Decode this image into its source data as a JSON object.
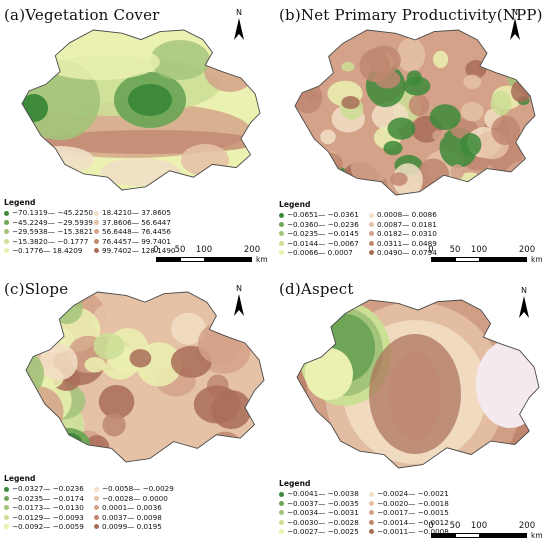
{
  "north_letter": "N",
  "legend_title": "Legend",
  "scale_bar": {
    "ticks": [
      "0",
      "50",
      "100",
      "200"
    ],
    "unit": "km"
  },
  "panels": [
    {
      "title": "(a)Vegetation Cover",
      "legend": [
        {
          "label": "−70.1319— −45.2250",
          "color": "#3d8a3a"
        },
        {
          "label": "−45.2249— −29.5939",
          "color": "#6ea556"
        },
        {
          "label": "−29.5938— −15.3821",
          "color": "#a3c37a"
        },
        {
          "label": "−15.3820— −0.1777",
          "color": "#cbdf95"
        },
        {
          "label": "−0.1776— 18.4209",
          "color": "#ebf1b0"
        },
        {
          "label": "18.4210— 37.8605",
          "color": "#f2dfc6"
        },
        {
          "label": "37.8606— 56.6447",
          "color": "#e5c2a6"
        },
        {
          "label": "56.6448— 76.4456",
          "color": "#d3a288"
        },
        {
          "label": "76.4457— 99.7401",
          "color": "#c08770"
        },
        {
          "label": "99.7402— 128.1490",
          "color": "#a96d58"
        }
      ]
    },
    {
      "title": "(b)Net Primary Productivity(NPP)",
      "legend": [
        {
          "label": "−0.0651— −0.0361",
          "color": "#3d8a3a"
        },
        {
          "label": "−0.0360— −0.0236",
          "color": "#6ea556"
        },
        {
          "label": "−0.0235— −0.0145",
          "color": "#a3c37a"
        },
        {
          "label": "−0.0144— −0.0067",
          "color": "#cbdf95"
        },
        {
          "label": "−0.0066— 0.0007",
          "color": "#ebf1b0"
        },
        {
          "label": "0.0008— 0.0086",
          "color": "#f2dfc6"
        },
        {
          "label": "0.0087— 0.0181",
          "color": "#e5c2a6"
        },
        {
          "label": "0.0182— 0.0310",
          "color": "#d3a288"
        },
        {
          "label": "0.0311— 0.0489",
          "color": "#c08770"
        },
        {
          "label": "0.0490— 0.0794",
          "color": "#a96d58"
        }
      ]
    },
    {
      "title": "(c)Slope",
      "legend": [
        {
          "label": "−0.0327— −0.0236",
          "color": "#3d8a3a"
        },
        {
          "label": "−0.0235— −0.0174",
          "color": "#6ea556"
        },
        {
          "label": "−0.0173— −0.0130",
          "color": "#a3c37a"
        },
        {
          "label": "−0.0129— −0.0093",
          "color": "#cbdf95"
        },
        {
          "label": "−0.0092— −0.0059",
          "color": "#ebf1b0"
        },
        {
          "label": "−0.0058— −0.0029",
          "color": "#f2dfc6"
        },
        {
          "label": "−0.0028— 0.0000",
          "color": "#e5c2a6"
        },
        {
          "label": "0.0001— 0.0036",
          "color": "#d3a288"
        },
        {
          "label": "0.0037— 0.0098",
          "color": "#c08770"
        },
        {
          "label": "0.0099— 0.0195",
          "color": "#a96d58"
        }
      ]
    },
    {
      "title": "(d)Aspect",
      "legend": [
        {
          "label": "−0.0041— −0.0038",
          "color": "#3d8a3a"
        },
        {
          "label": "−0.0037— −0.0035",
          "color": "#6ea556"
        },
        {
          "label": "−0.0034— −0.0031",
          "color": "#a3c37a"
        },
        {
          "label": "−0.0030— −0.0028",
          "color": "#cbdf95"
        },
        {
          "label": "−0.0027— −0.0025",
          "color": "#ebf1b0"
        },
        {
          "label": "−0.0024— −0.0021",
          "color": "#f2dfc6"
        },
        {
          "label": "−0.0020— −0.0018",
          "color": "#e5c2a6"
        },
        {
          "label": "−0.0017— −0.0015",
          "color": "#d3a288"
        },
        {
          "label": "−0.0014— −0.0012",
          "color": "#c08770"
        },
        {
          "label": "−0.0011— −0.0008",
          "color": "#a96d58"
        }
      ]
    }
  ]
}
